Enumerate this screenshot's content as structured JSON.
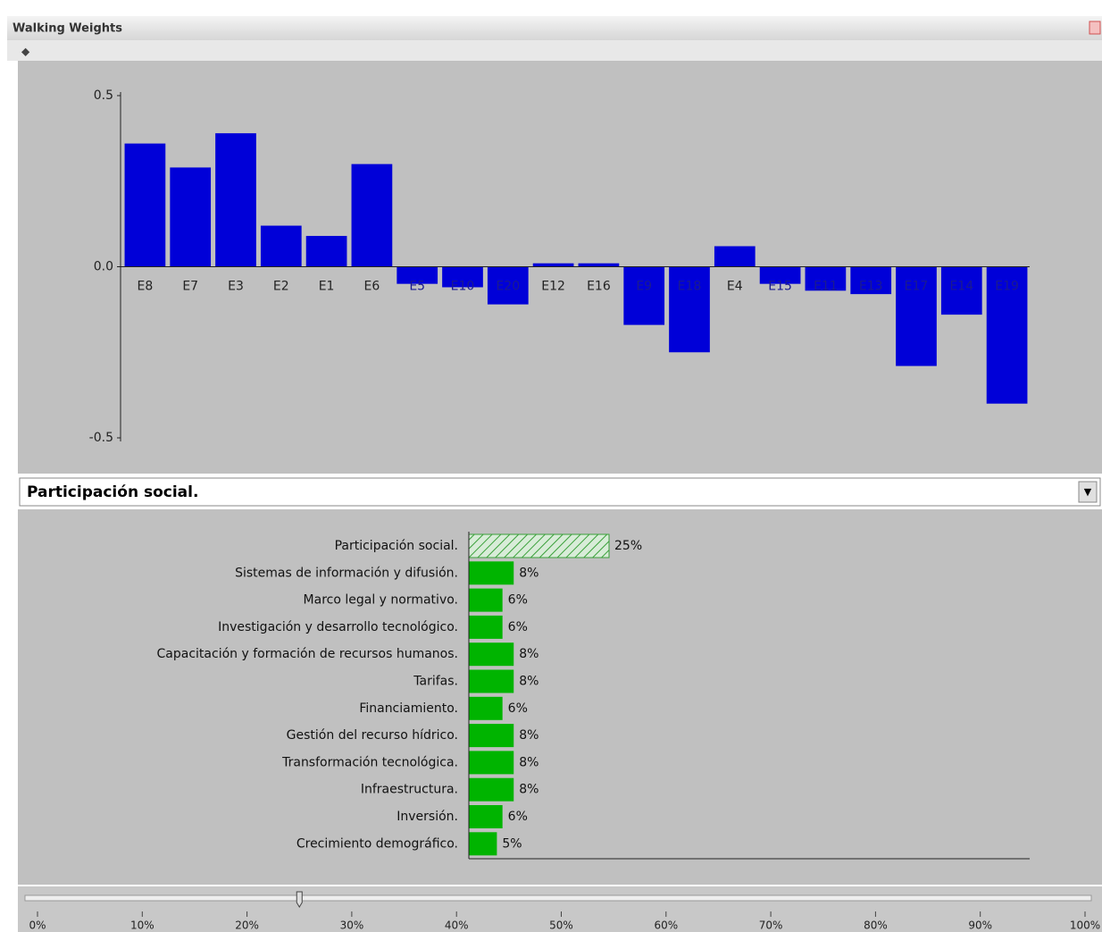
{
  "window": {
    "title": "Walking Weights"
  },
  "chart_data": [
    {
      "type": "bar",
      "categories": [
        "E8",
        "E7",
        "E3",
        "E2",
        "E1",
        "E6",
        "E5",
        "E10",
        "E20",
        "E12",
        "E16",
        "E9",
        "E18",
        "E4",
        "E15",
        "E11",
        "E13",
        "E17",
        "E14",
        "E19"
      ],
      "values": [
        0.36,
        0.29,
        0.39,
        0.12,
        0.09,
        0.3,
        -0.05,
        -0.06,
        -0.11,
        0.01,
        0.01,
        -0.17,
        -0.25,
        0.06,
        -0.05,
        -0.07,
        -0.08,
        -0.29,
        -0.14,
        -0.4
      ],
      "color": "#0000d8",
      "ylim": [
        -0.5,
        0.5
      ],
      "yticks": [
        0.5,
        {
          "value": 0,
          "label": "0.0"
        },
        -0.5
      ]
    },
    {
      "type": "hbar",
      "categories": [
        "Participación social.",
        "Sistemas de información y difusión.",
        "Marco legal y normativo.",
        "Investigación y desarrollo tecnológico.",
        "Capacitación y formación de recursos humanos.",
        "Tarifas.",
        "Financiamiento.",
        "Gestión del recurso hídrico.",
        "Transformación tecnológica.",
        "Infraestructura.",
        "Inversión.",
        "Crecimiento demográfico."
      ],
      "values": [
        25,
        8,
        6,
        6,
        8,
        8,
        6,
        8,
        8,
        8,
        6,
        5
      ],
      "value_labels": [
        "25%",
        "8%",
        "6%",
        "6%",
        "8%",
        "8%",
        "6%",
        "8%",
        "8%",
        "8%",
        "6%",
        "5%"
      ],
      "color": "#00b400",
      "selected_index": 0,
      "xlim": [
        0,
        100
      ]
    }
  ],
  "dropdown": {
    "selected": "Participación social."
  },
  "slider": {
    "value": 25,
    "range": [
      0,
      100
    ],
    "ticks": [
      {
        "value": 0,
        "label": "0%"
      },
      {
        "value": 10,
        "label": "10%"
      },
      {
        "value": 20,
        "label": "20%"
      },
      {
        "value": 30,
        "label": "30%"
      },
      {
        "value": 40,
        "label": "40%"
      },
      {
        "value": 50,
        "label": "50%"
      },
      {
        "value": 60,
        "label": "60%"
      },
      {
        "value": 70,
        "label": "70%"
      },
      {
        "value": 80,
        "label": "80%"
      },
      {
        "value": 90,
        "label": "90%"
      },
      {
        "value": 100,
        "label": "100%"
      }
    ]
  }
}
